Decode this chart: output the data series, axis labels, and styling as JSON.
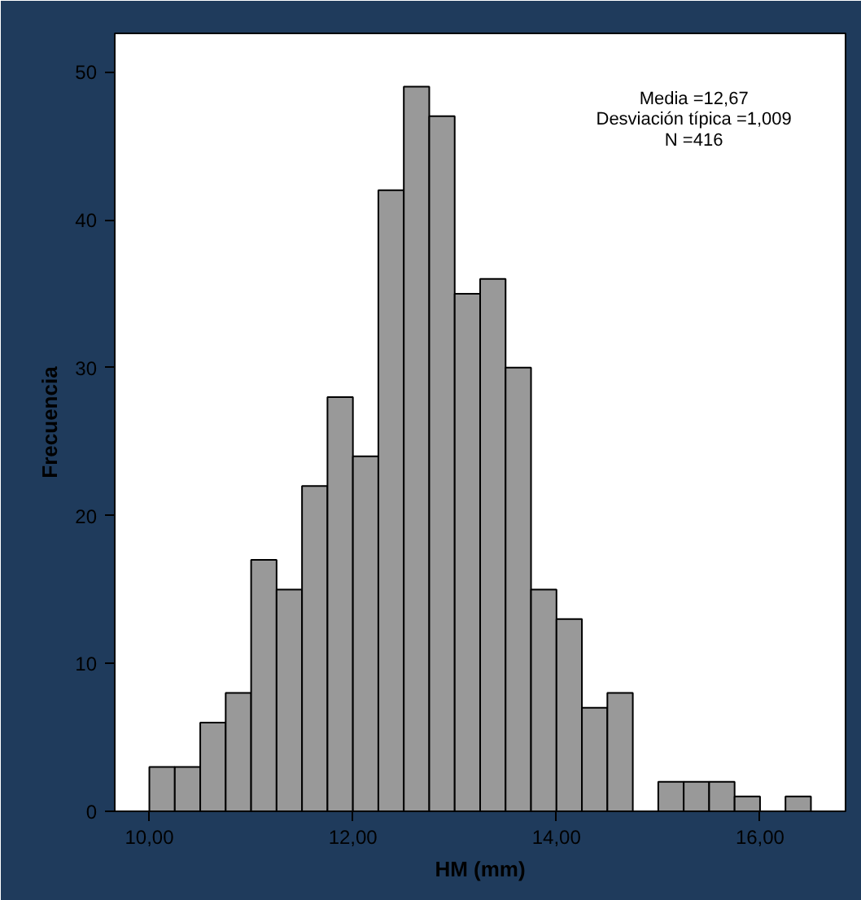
{
  "chart_data": {
    "type": "histogram",
    "xlabel": "HM (mm)",
    "ylabel": "Frecuencia",
    "bins": [
      10.0,
      10.25,
      10.5,
      10.75,
      11.0,
      11.25,
      11.5,
      11.75,
      12.0,
      12.25,
      12.5,
      12.75,
      13.0,
      13.25,
      13.5,
      13.75,
      14.0,
      14.25,
      14.5,
      14.75,
      15.0,
      15.25,
      15.5,
      15.75,
      16.0,
      16.25,
      16.5
    ],
    "values": [
      3,
      3,
      6,
      8,
      17,
      15,
      22,
      28,
      24,
      42,
      49,
      47,
      35,
      36,
      30,
      15,
      13,
      7,
      8,
      0,
      2,
      2,
      2,
      1,
      0,
      1
    ],
    "color": "#999999",
    "xlim": [
      9.66,
      16.84
    ],
    "ylim": [
      0,
      52.6
    ],
    "xticks": [
      {
        "value": 10,
        "label": "10,00"
      },
      {
        "value": 12,
        "label": "12,00"
      },
      {
        "value": 14,
        "label": "14,00"
      },
      {
        "value": 16,
        "label": "16,00"
      }
    ],
    "yticks": [
      0,
      10,
      20,
      30,
      40,
      50
    ],
    "annotations": [
      "Media =12,67",
      "Desviación típica =1,009",
      "N =416"
    ],
    "grid": false
  }
}
